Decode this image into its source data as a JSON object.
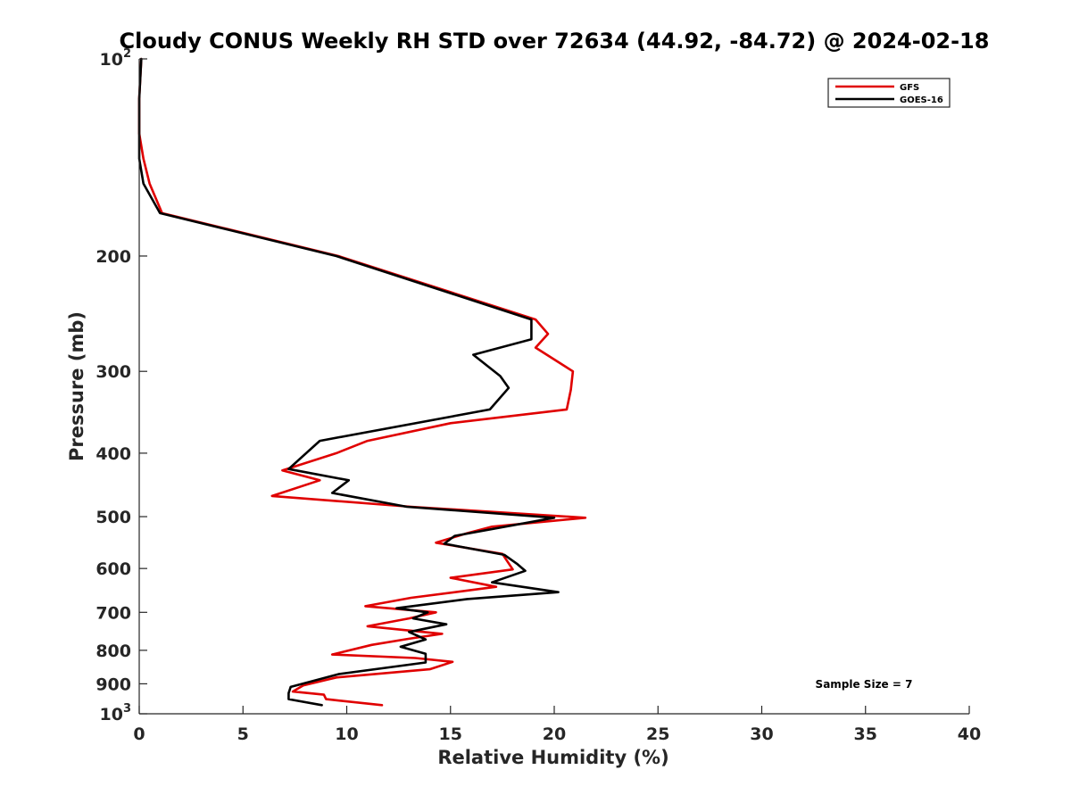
{
  "chart_data": {
    "type": "line",
    "title": "Cloudy CONUS Weekly RH STD over 72634 (44.92, -84.72) @ 2024-02-18",
    "xlabel": "Relative Humidity (%)",
    "ylabel": "Pressure (mb)",
    "xlim": [
      0,
      40
    ],
    "ylim": [
      100,
      1000
    ],
    "y_scale": "log",
    "y_reversed": true,
    "grid": false,
    "legend_position": "top-right",
    "x_ticks": [
      0,
      5,
      10,
      15,
      20,
      25,
      30,
      35,
      40
    ],
    "x_tick_labels": [
      "0",
      "5",
      "10",
      "15",
      "20",
      "25",
      "30",
      "35",
      "40"
    ],
    "y_ticks": [
      100,
      200,
      300,
      400,
      500,
      600,
      700,
      800,
      900,
      1000
    ],
    "y_tick_labels": [
      {
        "base": "10",
        "sup": "2"
      },
      {
        "base": "200",
        "sup": ""
      },
      {
        "base": "300",
        "sup": ""
      },
      {
        "base": "400",
        "sup": ""
      },
      {
        "base": "500",
        "sup": ""
      },
      {
        "base": "600",
        "sup": ""
      },
      {
        "base": "700",
        "sup": ""
      },
      {
        "base": "800",
        "sup": ""
      },
      {
        "base": "900",
        "sup": ""
      },
      {
        "base": "10",
        "sup": "3"
      }
    ],
    "annotation": "Sample Size = 7",
    "series": [
      {
        "name": "GFS",
        "color": "#e00000",
        "points": [
          [
            0.1,
            100
          ],
          [
            0.0,
            115
          ],
          [
            0.0,
            130
          ],
          [
            0.2,
            142
          ],
          [
            0.5,
            155
          ],
          [
            1.1,
            172
          ],
          [
            9.6,
            200
          ],
          [
            19.1,
            250
          ],
          [
            19.7,
            263
          ],
          [
            19.1,
            276
          ],
          [
            20.9,
            300
          ],
          [
            20.8,
            320
          ],
          [
            20.6,
            343
          ],
          [
            15.0,
            360
          ],
          [
            11.0,
            383
          ],
          [
            9.5,
            400
          ],
          [
            6.9,
            425
          ],
          [
            8.7,
            440
          ],
          [
            6.4,
            465
          ],
          [
            13.1,
            483
          ],
          [
            21.5,
            502
          ],
          [
            17.0,
            518
          ],
          [
            15.8,
            530
          ],
          [
            14.3,
            548
          ],
          [
            17.5,
            570
          ],
          [
            18.0,
            602
          ],
          [
            15.0,
            620
          ],
          [
            17.2,
            640
          ],
          [
            13.1,
            665
          ],
          [
            10.9,
            685
          ],
          [
            14.3,
            700
          ],
          [
            13.0,
            715
          ],
          [
            11.0,
            735
          ],
          [
            14.6,
            755
          ],
          [
            13.0,
            768
          ],
          [
            11.2,
            785
          ],
          [
            9.3,
            812
          ],
          [
            13.3,
            822
          ],
          [
            15.1,
            833
          ],
          [
            14.0,
            855
          ],
          [
            9.5,
            880
          ],
          [
            7.9,
            905
          ],
          [
            7.4,
            925
          ],
          [
            8.9,
            935
          ],
          [
            9.0,
            950
          ],
          [
            11.7,
            970
          ]
        ]
      },
      {
        "name": "GOES-16",
        "color": "#000000",
        "points": [
          [
            0.1,
            100
          ],
          [
            0.0,
            115
          ],
          [
            0.0,
            130
          ],
          [
            0.0,
            142
          ],
          [
            0.2,
            155
          ],
          [
            1.0,
            172
          ],
          [
            9.5,
            200
          ],
          [
            18.9,
            250
          ],
          [
            18.9,
            268
          ],
          [
            16.1,
            283
          ],
          [
            17.4,
            305
          ],
          [
            17.8,
            318
          ],
          [
            16.9,
            343
          ],
          [
            8.7,
            383
          ],
          [
            7.2,
            423
          ],
          [
            10.1,
            440
          ],
          [
            9.3,
            460
          ],
          [
            12.9,
            483
          ],
          [
            20.0,
            502
          ],
          [
            15.2,
            535
          ],
          [
            14.7,
            550
          ],
          [
            17.6,
            572
          ],
          [
            18.2,
            590
          ],
          [
            18.6,
            605
          ],
          [
            17.0,
            630
          ],
          [
            20.2,
            652
          ],
          [
            15.8,
            668
          ],
          [
            12.4,
            690
          ],
          [
            13.9,
            700
          ],
          [
            13.2,
            715
          ],
          [
            14.8,
            730
          ],
          [
            13.0,
            750
          ],
          [
            13.8,
            770
          ],
          [
            12.6,
            790
          ],
          [
            13.8,
            810
          ],
          [
            13.8,
            835
          ],
          [
            9.6,
            870
          ],
          [
            7.3,
            910
          ],
          [
            7.2,
            930
          ],
          [
            7.2,
            950
          ],
          [
            8.8,
            970
          ]
        ]
      }
    ]
  }
}
